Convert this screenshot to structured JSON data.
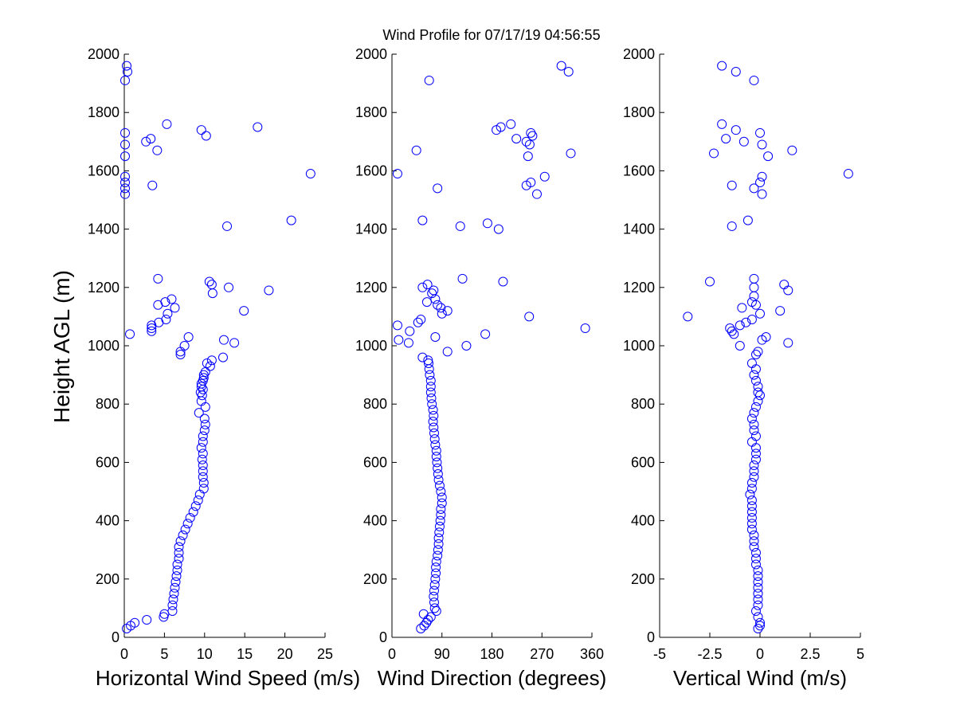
{
  "title": "Wind Profile for  07/17/19 04:56:55",
  "ylabel": "Height AGL (m)",
  "colors": {
    "marker": "#0000ff",
    "axis": "#000000",
    "background": "#ffffff"
  },
  "chart_data": [
    {
      "type": "scatter",
      "xlabel": "Horizontal Wind Speed (m/s)",
      "ylabel": "Height AGL (m)",
      "xlim": [
        0,
        25
      ],
      "ylim": [
        0,
        2000
      ],
      "xticks": [
        0,
        5,
        10,
        15,
        20,
        25
      ],
      "xtick_labels": [
        "0",
        "5",
        "10",
        "15",
        "20",
        "25"
      ],
      "yticks": [
        0,
        200,
        400,
        600,
        800,
        1000,
        1200,
        1400,
        1600,
        1800,
        2000
      ],
      "ytick_labels": [
        "0",
        "200",
        "400",
        "600",
        "800",
        "1000",
        "1200",
        "1400",
        "1600",
        "1800",
        "2000"
      ],
      "grid": false,
      "marker": "open-circle",
      "points": [
        [
          0.3,
          1960
        ],
        [
          0.4,
          1940
        ],
        [
          0.1,
          1910
        ],
        [
          5.3,
          1760
        ],
        [
          16.6,
          1750
        ],
        [
          9.6,
          1740
        ],
        [
          0.1,
          1730
        ],
        [
          10.2,
          1720
        ],
        [
          3.3,
          1710
        ],
        [
          2.7,
          1700
        ],
        [
          0.1,
          1690
        ],
        [
          4.1,
          1670
        ],
        [
          0.1,
          1650
        ],
        [
          23.2,
          1590
        ],
        [
          0.1,
          1580
        ],
        [
          0.1,
          1560
        ],
        [
          3.5,
          1550
        ],
        [
          0.1,
          1540
        ],
        [
          0.1,
          1520
        ],
        [
          20.8,
          1430
        ],
        [
          12.8,
          1410
        ],
        [
          4.2,
          1230
        ],
        [
          10.6,
          1220
        ],
        [
          10.9,
          1210
        ],
        [
          13.0,
          1200
        ],
        [
          18.0,
          1190
        ],
        [
          11.0,
          1180
        ],
        [
          5.9,
          1160
        ],
        [
          5.1,
          1150
        ],
        [
          4.2,
          1140
        ],
        [
          6.3,
          1130
        ],
        [
          14.9,
          1120
        ],
        [
          5.4,
          1110
        ],
        [
          5.2,
          1090
        ],
        [
          4.3,
          1080
        ],
        [
          3.4,
          1070
        ],
        [
          3.4,
          1060
        ],
        [
          3.4,
          1050
        ],
        [
          0.7,
          1040
        ],
        [
          8.0,
          1030
        ],
        [
          12.4,
          1020
        ],
        [
          13.7,
          1010
        ],
        [
          7.5,
          1000
        ],
        [
          7.0,
          980
        ],
        [
          7.0,
          970
        ],
        [
          12.3,
          960
        ],
        [
          10.9,
          950
        ],
        [
          10.3,
          940
        ],
        [
          10.7,
          930
        ],
        [
          10.1,
          910
        ],
        [
          9.9,
          900
        ],
        [
          9.9,
          890
        ],
        [
          9.8,
          880
        ],
        [
          9.6,
          870
        ],
        [
          9.6,
          860
        ],
        [
          9.8,
          850
        ],
        [
          9.5,
          840
        ],
        [
          9.7,
          830
        ],
        [
          9.6,
          810
        ],
        [
          10.1,
          790
        ],
        [
          9.3,
          770
        ],
        [
          10.0,
          750
        ],
        [
          10.1,
          730
        ],
        [
          10.0,
          710
        ],
        [
          9.8,
          690
        ],
        [
          9.8,
          670
        ],
        [
          9.6,
          650
        ],
        [
          9.8,
          630
        ],
        [
          9.7,
          610
        ],
        [
          9.8,
          590
        ],
        [
          9.8,
          570
        ],
        [
          9.8,
          550
        ],
        [
          9.9,
          530
        ],
        [
          9.9,
          510
        ],
        [
          9.4,
          490
        ],
        [
          9.2,
          470
        ],
        [
          8.9,
          450
        ],
        [
          8.6,
          430
        ],
        [
          8.2,
          410
        ],
        [
          7.9,
          390
        ],
        [
          7.6,
          370
        ],
        [
          7.3,
          350
        ],
        [
          7.0,
          330
        ],
        [
          6.8,
          310
        ],
        [
          6.8,
          290
        ],
        [
          6.8,
          270
        ],
        [
          6.6,
          250
        ],
        [
          6.6,
          230
        ],
        [
          6.5,
          210
        ],
        [
          6.4,
          190
        ],
        [
          6.3,
          170
        ],
        [
          6.2,
          150
        ],
        [
          6.1,
          130
        ],
        [
          6.0,
          110
        ],
        [
          6.0,
          90
        ],
        [
          4.9,
          70
        ],
        [
          5.0,
          80
        ],
        [
          2.8,
          60
        ],
        [
          1.3,
          50
        ],
        [
          0.8,
          40
        ],
        [
          0.3,
          30
        ]
      ]
    },
    {
      "type": "scatter",
      "xlabel": "Wind Direction (degrees)",
      "xlim": [
        0,
        360
      ],
      "ylim": [
        0,
        2000
      ],
      "xticks": [
        0,
        90,
        180,
        270,
        360
      ],
      "xtick_labels": [
        "0",
        "90",
        "180",
        "270",
        "360"
      ],
      "yticks": [
        0,
        200,
        400,
        600,
        800,
        1000,
        1200,
        1400,
        1600,
        1800,
        2000
      ],
      "ytick_labels": [
        "0",
        "200",
        "400",
        "600",
        "800",
        "1000",
        "1200",
        "1400",
        "1600",
        "1800",
        "2000"
      ],
      "grid": false,
      "marker": "open-circle",
      "points": [
        [
          305,
          1960
        ],
        [
          318,
          1940
        ],
        [
          67,
          1910
        ],
        [
          214,
          1760
        ],
        [
          196,
          1750
        ],
        [
          188,
          1740
        ],
        [
          250,
          1730
        ],
        [
          253,
          1720
        ],
        [
          224,
          1710
        ],
        [
          242,
          1700
        ],
        [
          248,
          1690
        ],
        [
          44,
          1670
        ],
        [
          245,
          1650
        ],
        [
          322,
          1660
        ],
        [
          275,
          1580
        ],
        [
          10,
          1590
        ],
        [
          250,
          1560
        ],
        [
          242,
          1550
        ],
        [
          82,
          1540
        ],
        [
          261,
          1520
        ],
        [
          55,
          1430
        ],
        [
          123,
          1410
        ],
        [
          172,
          1420
        ],
        [
          192,
          1400
        ],
        [
          127,
          1230
        ],
        [
          200,
          1220
        ],
        [
          64,
          1210
        ],
        [
          55,
          1200
        ],
        [
          75,
          1190
        ],
        [
          72,
          1180
        ],
        [
          78,
          1160
        ],
        [
          63,
          1150
        ],
        [
          82,
          1140
        ],
        [
          88,
          1130
        ],
        [
          100,
          1120
        ],
        [
          90,
          1110
        ],
        [
          247,
          1100
        ],
        [
          52,
          1090
        ],
        [
          47,
          1080
        ],
        [
          10,
          1070
        ],
        [
          348,
          1060
        ],
        [
          32,
          1050
        ],
        [
          168,
          1040
        ],
        [
          78,
          1030
        ],
        [
          12,
          1020
        ],
        [
          30,
          1010
        ],
        [
          134,
          1000
        ],
        [
          100,
          980
        ],
        [
          55,
          960
        ],
        [
          65,
          950
        ],
        [
          66,
          940
        ],
        [
          67,
          920
        ],
        [
          68,
          900
        ],
        [
          70,
          880
        ],
        [
          70,
          860
        ],
        [
          70,
          840
        ],
        [
          71,
          820
        ],
        [
          72,
          800
        ],
        [
          74,
          780
        ],
        [
          75,
          760
        ],
        [
          74,
          740
        ],
        [
          75,
          720
        ],
        [
          76,
          700
        ],
        [
          77,
          680
        ],
        [
          78,
          660
        ],
        [
          80,
          640
        ],
        [
          80,
          620
        ],
        [
          81,
          600
        ],
        [
          82,
          580
        ],
        [
          83,
          560
        ],
        [
          84,
          540
        ],
        [
          86,
          520
        ],
        [
          88,
          500
        ],
        [
          90,
          480
        ],
        [
          90,
          460
        ],
        [
          88,
          440
        ],
        [
          88,
          420
        ],
        [
          87,
          400
        ],
        [
          86,
          380
        ],
        [
          85,
          360
        ],
        [
          84,
          340
        ],
        [
          84,
          320
        ],
        [
          83,
          300
        ],
        [
          82,
          280
        ],
        [
          80,
          260
        ],
        [
          79,
          240
        ],
        [
          79,
          220
        ],
        [
          78,
          200
        ],
        [
          77,
          180
        ],
        [
          76,
          160
        ],
        [
          75,
          140
        ],
        [
          76,
          120
        ],
        [
          77,
          100
        ],
        [
          80,
          90
        ],
        [
          57,
          80
        ],
        [
          70,
          70
        ],
        [
          65,
          60
        ],
        [
          62,
          50
        ],
        [
          58,
          40
        ],
        [
          52,
          30
        ]
      ]
    },
    {
      "type": "scatter",
      "xlabel": "Vertical Wind (m/s)",
      "xlim": [
        -5,
        5
      ],
      "ylim": [
        0,
        2000
      ],
      "xticks": [
        -5,
        -2.5,
        0,
        2.5,
        5
      ],
      "xtick_labels": [
        "-5",
        "-2.5",
        "0",
        "2.5",
        "5"
      ],
      "yticks": [
        0,
        200,
        400,
        600,
        800,
        1000,
        1200,
        1400,
        1600,
        1800,
        2000
      ],
      "ytick_labels": [
        "0",
        "200",
        "400",
        "600",
        "800",
        "1000",
        "1200",
        "1400",
        "1600",
        "1800",
        "2000"
      ],
      "grid": false,
      "marker": "open-circle",
      "points": [
        [
          -1.9,
          1960
        ],
        [
          -1.2,
          1940
        ],
        [
          -0.3,
          1910
        ],
        [
          -1.9,
          1760
        ],
        [
          -1.2,
          1740
        ],
        [
          0.0,
          1730
        ],
        [
          -1.7,
          1710
        ],
        [
          -0.8,
          1700
        ],
        [
          0.1,
          1690
        ],
        [
          -2.3,
          1660
        ],
        [
          1.6,
          1670
        ],
        [
          0.4,
          1650
        ],
        [
          4.4,
          1590
        ],
        [
          0.1,
          1580
        ],
        [
          0.0,
          1560
        ],
        [
          -1.4,
          1550
        ],
        [
          -0.3,
          1540
        ],
        [
          0.1,
          1520
        ],
        [
          -0.6,
          1430
        ],
        [
          -1.4,
          1410
        ],
        [
          -2.5,
          1220
        ],
        [
          -0.3,
          1230
        ],
        [
          1.2,
          1210
        ],
        [
          -0.3,
          1200
        ],
        [
          1.4,
          1190
        ],
        [
          -0.3,
          1170
        ],
        [
          -0.4,
          1150
        ],
        [
          -0.2,
          1140
        ],
        [
          -0.9,
          1130
        ],
        [
          1.0,
          1120
        ],
        [
          0.0,
          1110
        ],
        [
          -3.6,
          1100
        ],
        [
          -0.4,
          1090
        ],
        [
          -0.7,
          1080
        ],
        [
          -1.0,
          1070
        ],
        [
          -1.5,
          1060
        ],
        [
          -1.4,
          1050
        ],
        [
          -1.3,
          1040
        ],
        [
          0.3,
          1030
        ],
        [
          0.1,
          1020
        ],
        [
          1.4,
          1010
        ],
        [
          -1.0,
          1000
        ],
        [
          -0.1,
          980
        ],
        [
          -0.2,
          970
        ],
        [
          -0.4,
          940
        ],
        [
          -0.2,
          920
        ],
        [
          -0.3,
          900
        ],
        [
          -0.2,
          880
        ],
        [
          -0.1,
          860
        ],
        [
          -0.1,
          840
        ],
        [
          0.0,
          830
        ],
        [
          -0.1,
          810
        ],
        [
          -0.2,
          790
        ],
        [
          -0.3,
          770
        ],
        [
          -0.4,
          750
        ],
        [
          -0.3,
          730
        ],
        [
          -0.3,
          710
        ],
        [
          -0.2,
          690
        ],
        [
          -0.4,
          670
        ],
        [
          -0.2,
          650
        ],
        [
          -0.2,
          630
        ],
        [
          -0.2,
          610
        ],
        [
          -0.3,
          590
        ],
        [
          -0.3,
          570
        ],
        [
          -0.3,
          550
        ],
        [
          -0.4,
          530
        ],
        [
          -0.4,
          510
        ],
        [
          -0.5,
          490
        ],
        [
          -0.4,
          470
        ],
        [
          -0.4,
          450
        ],
        [
          -0.4,
          430
        ],
        [
          -0.4,
          410
        ],
        [
          -0.4,
          390
        ],
        [
          -0.4,
          370
        ],
        [
          -0.3,
          350
        ],
        [
          -0.3,
          330
        ],
        [
          -0.3,
          310
        ],
        [
          -0.2,
          290
        ],
        [
          -0.2,
          270
        ],
        [
          -0.2,
          250
        ],
        [
          -0.1,
          230
        ],
        [
          -0.1,
          210
        ],
        [
          -0.1,
          190
        ],
        [
          -0.1,
          170
        ],
        [
          -0.1,
          150
        ],
        [
          -0.1,
          130
        ],
        [
          -0.1,
          110
        ],
        [
          -0.2,
          90
        ],
        [
          -0.1,
          70
        ],
        [
          0.0,
          50
        ],
        [
          0.0,
          40
        ],
        [
          -0.1,
          30
        ]
      ]
    }
  ]
}
